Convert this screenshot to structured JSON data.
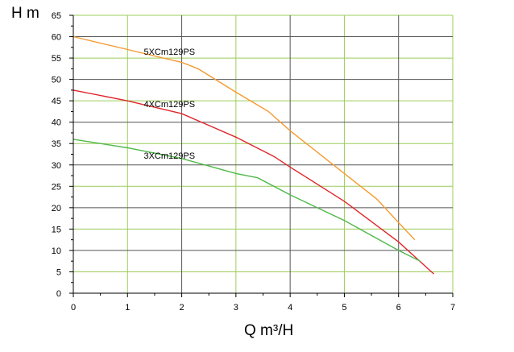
{
  "chart_data": {
    "type": "line",
    "xlabel": "Q m³/H",
    "ylabel": "H m",
    "xlim": [
      0,
      7
    ],
    "ylim": [
      0,
      65
    ],
    "x_ticks": [
      0,
      1,
      2,
      3,
      4,
      5,
      6,
      7
    ],
    "y_ticks": [
      0,
      5,
      10,
      15,
      20,
      25,
      30,
      35,
      40,
      45,
      50,
      55,
      60,
      65
    ],
    "grid": true,
    "legend": "none",
    "series": [
      {
        "name": "5XCm129PS",
        "color": "#f59a30",
        "label_at": [
          1.3,
          55.8
        ],
        "points": [
          [
            0,
            60
          ],
          [
            1,
            57
          ],
          [
            2,
            54
          ],
          [
            2.3,
            52.5
          ],
          [
            3,
            47
          ],
          [
            3.6,
            42.5
          ],
          [
            4,
            38
          ],
          [
            5,
            28
          ],
          [
            5.6,
            22
          ],
          [
            6,
            16.5
          ],
          [
            6.3,
            12.5
          ]
        ]
      },
      {
        "name": "4XCm129PS",
        "color": "#e0262a",
        "label_at": [
          1.3,
          43.5
        ],
        "points": [
          [
            0,
            47.5
          ],
          [
            1,
            45
          ],
          [
            2,
            42
          ],
          [
            3,
            36.5
          ],
          [
            3.7,
            32
          ],
          [
            4,
            29.5
          ],
          [
            5,
            21.5
          ],
          [
            6,
            12
          ],
          [
            6.65,
            4.5
          ]
        ]
      },
      {
        "name": "3XCm129PS",
        "color": "#4fb84a",
        "label_at": [
          1.3,
          31.5
        ],
        "points": [
          [
            0,
            36
          ],
          [
            1,
            34
          ],
          [
            2,
            31.5
          ],
          [
            3,
            28
          ],
          [
            3.4,
            27
          ],
          [
            4,
            23
          ],
          [
            5,
            17
          ],
          [
            6,
            10
          ],
          [
            6.4,
            7.5
          ]
        ]
      }
    ]
  }
}
